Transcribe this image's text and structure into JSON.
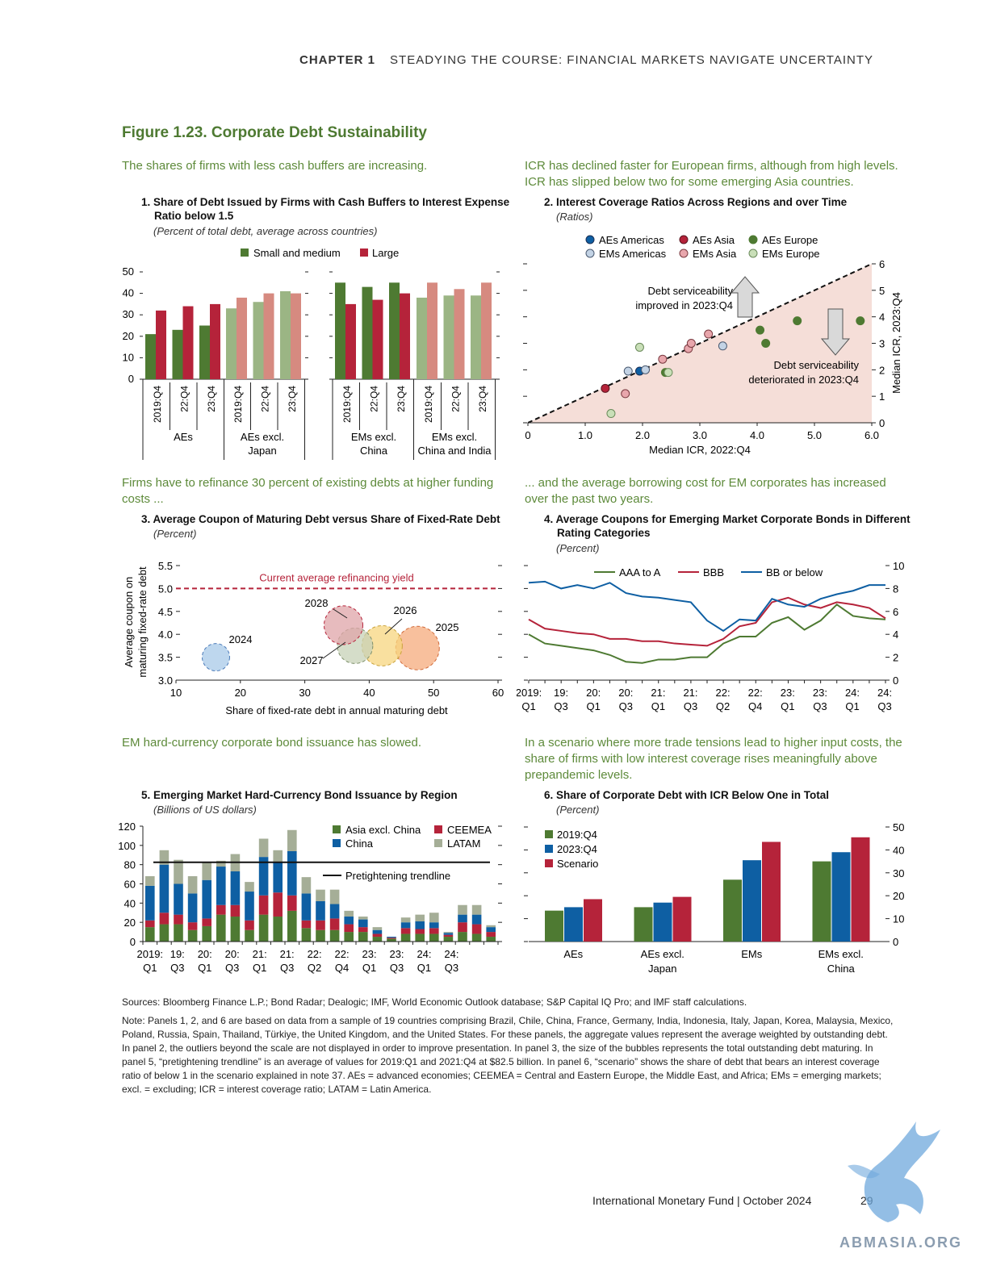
{
  "header": {
    "chapter": "CHAPTER 1",
    "title": "STEADYING THE COURSE: FINANCIAL MARKETS NAVIGATE UNCERTAINTY"
  },
  "figure_title": "Figure 1.23. Corporate Debt Sustainability",
  "leads": {
    "p1": "The shares of firms with less cash buffers are increasing.",
    "p2": "ICR has declined faster for European firms, although from high levels. ICR has slipped below two for some emerging Asia countries.",
    "p3": "Firms have to refinance 30 percent of existing debts at higher funding costs ...",
    "p4": "... and the average borrowing cost for EM corporates has increased over the past two years.",
    "p5": "EM hard-currency corporate bond issuance has slowed.",
    "p6": "In a scenario where more trade tensions lead to higher input costs, the share of firms with low interest coverage rises meaningfully above prepandemic levels."
  },
  "panels": {
    "p1": {
      "title1": "1. Share of Debt Issued by Firms with Cash Buffers to Interest Expense",
      "title2": "Ratio below 1.5",
      "unit": "(Percent of total debt, average across countries)"
    },
    "p2": {
      "title": "2. Interest Coverage Ratios Across Regions and over Time",
      "unit": "(Ratios)"
    },
    "p3": {
      "title": "3. Average Coupon of Maturing Debt versus Share of Fixed-Rate Debt",
      "unit": "(Percent)"
    },
    "p4": {
      "title1": "4. Average Coupons for Emerging Market Corporate Bonds in Different",
      "title2": "Rating Categories",
      "unit": "(Percent)"
    },
    "p5": {
      "title": "5. Emerging Market Hard-Currency Bond Issuance by Region",
      "unit": "(Billions of US dollars)"
    },
    "p6": {
      "title": "6. Share of Corporate Debt with ICR Below One in Total",
      "unit": "(Percent)"
    }
  },
  "colors": {
    "green": "#4e7a32",
    "red": "#b5233a",
    "lightgreen": "#9bb584",
    "lightred": "#d68a80",
    "blue": "#0e5fa3",
    "lightblue": "#c3d3e5",
    "pink": "#e8a6ac",
    "palegreen": "#c9dfb8",
    "gray": "#a5ae97"
  },
  "chart_data": [
    {
      "type": "bar",
      "id": "p1",
      "series": [
        {
          "name": "Small and medium",
          "values": [
            21,
            23,
            25,
            33,
            36,
            41,
            45,
            43,
            45,
            38,
            39,
            39
          ]
        },
        {
          "name": "Large",
          "values": [
            32,
            34,
            35,
            38,
            40,
            40,
            35,
            37,
            40,
            45,
            42,
            45
          ]
        }
      ],
      "categories": [
        "2019:Q4",
        "22:Q4",
        "23:Q4",
        "2019:Q4",
        "22:Q4",
        "23:Q4",
        "2019:Q4",
        "22:Q4",
        "23:Q4",
        "2019:Q4",
        "22:Q4",
        "23:Q4"
      ],
      "groups": [
        "AEs",
        "AEs excl. Japan",
        "EMs excl. China",
        "EMs excl. China and India"
      ],
      "ylim": [
        0,
        50
      ],
      "yticks": [
        "0",
        "10",
        "20",
        "30",
        "40",
        "50"
      ]
    },
    {
      "type": "scatter",
      "id": "p2",
      "xlabel": "Median ICR, 2022:Q4",
      "ylabel": "Median ICR, 2023:Q4",
      "xlim": [
        0,
        6
      ],
      "ylim": [
        0,
        6
      ],
      "xticks": [
        "0",
        "1.0",
        "2.0",
        "3.0",
        "4.0",
        "5.0",
        "6.0"
      ],
      "yticks": [
        "0",
        "1",
        "2",
        "3",
        "4",
        "5",
        "6"
      ],
      "legend": [
        "AEs Americas",
        "EMs Americas",
        "AEs Asia",
        "EMs Asia",
        "AEs Europe",
        "EMs Europe"
      ],
      "annot_up": [
        "Debt serviceability",
        "improved in 2023:Q4"
      ],
      "annot_down": [
        "Debt serviceability",
        "deteriorated in 2023:Q4"
      ],
      "points": [
        {
          "g": "AEs Americas",
          "x": 1.95,
          "y": 1.95
        },
        {
          "g": "EMs Americas",
          "x": 1.75,
          "y": 1.95
        },
        {
          "g": "EMs Americas",
          "x": 2.05,
          "y": 2.0
        },
        {
          "g": "EMs Americas",
          "x": 3.4,
          "y": 2.9
        },
        {
          "g": "AEs Asia",
          "x": 1.35,
          "y": 1.3
        },
        {
          "g": "EMs Asia",
          "x": 1.7,
          "y": 1.1
        },
        {
          "g": "EMs Asia",
          "x": 2.35,
          "y": 2.4
        },
        {
          "g": "EMs Asia",
          "x": 2.8,
          "y": 2.8
        },
        {
          "g": "EMs Asia",
          "x": 2.85,
          "y": 3.0
        },
        {
          "g": "EMs Asia",
          "x": 3.15,
          "y": 3.35
        },
        {
          "g": "AEs Europe",
          "x": 2.4,
          "y": 1.9
        },
        {
          "g": "AEs Europe",
          "x": 4.05,
          "y": 3.5
        },
        {
          "g": "AEs Europe",
          "x": 4.15,
          "y": 3.0
        },
        {
          "g": "AEs Europe",
          "x": 4.7,
          "y": 3.85
        },
        {
          "g": "AEs Europe",
          "x": 5.8,
          "y": 3.85
        },
        {
          "g": "EMs Europe",
          "x": 1.45,
          "y": 0.35
        },
        {
          "g": "EMs Europe",
          "x": 1.95,
          "y": 2.85
        },
        {
          "g": "EMs Europe",
          "x": 2.45,
          "y": 1.9
        }
      ]
    },
    {
      "type": "bubble",
      "id": "p3",
      "xlabel": "Share of fixed-rate debt in annual maturing debt",
      "ylabel": [
        "Average coupon on",
        "maturing fixed-rate debt"
      ],
      "xlim": [
        10,
        60
      ],
      "ylim": [
        3.0,
        5.5
      ],
      "xticks": [
        "10",
        "20",
        "30",
        "40",
        "50",
        "60"
      ],
      "yticks": [
        "3.0",
        "3.5",
        "4.0",
        "4.5",
        "5.0",
        "5.5"
      ],
      "refline_label": "Current average refinancing yield",
      "refline": 5.0,
      "bubbles": [
        {
          "label": "2024",
          "x": 16.2,
          "y": 3.5,
          "r": 17
        },
        {
          "label": "2025",
          "x": 47.5,
          "y": 3.7,
          "r": 27
        },
        {
          "label": "2026",
          "x": 42.0,
          "y": 3.75,
          "r": 25
        },
        {
          "label": "2027",
          "x": 37.8,
          "y": 3.75,
          "r": 22
        },
        {
          "label": "2028",
          "x": 36.0,
          "y": 4.2,
          "r": 24
        }
      ]
    },
    {
      "type": "line",
      "id": "p4",
      "ylim": [
        0,
        10
      ],
      "yticks": [
        "0",
        "2",
        "4",
        "6",
        "8",
        "10"
      ],
      "xticks": [
        [
          "2019:",
          "Q1"
        ],
        [
          "19:",
          "Q3"
        ],
        [
          "20:",
          "Q1"
        ],
        [
          "20:",
          "Q3"
        ],
        [
          "21:",
          "Q1"
        ],
        [
          "21:",
          "Q3"
        ],
        [
          "22:",
          "Q2"
        ],
        [
          "22:",
          "Q4"
        ],
        [
          "23:",
          "Q1"
        ],
        [
          "23:",
          "Q3"
        ],
        [
          "24:",
          "Q1"
        ],
        [
          "24:",
          "Q3"
        ]
      ],
      "series": [
        {
          "name": "AAA to A",
          "values": [
            4.0,
            3.2,
            3.0,
            2.8,
            2.6,
            2.2,
            1.6,
            1.5,
            1.8,
            1.8,
            2.0,
            2.0,
            3.2,
            3.8,
            3.8,
            5.0,
            5.5,
            4.4,
            5.2,
            6.6,
            5.6,
            5.4,
            5.3
          ]
        },
        {
          "name": "BBB",
          "values": [
            5.3,
            4.5,
            4.3,
            4.1,
            4.0,
            3.6,
            3.6,
            3.4,
            3.4,
            3.2,
            3.1,
            3.0,
            3.6,
            4.7,
            5.0,
            6.8,
            7.2,
            6.6,
            6.3,
            6.8,
            6.6,
            6.3,
            5.4
          ]
        },
        {
          "name": "BB or below",
          "values": [
            8.5,
            8.6,
            8.0,
            8.3,
            8.0,
            8.5,
            7.6,
            7.3,
            7.2,
            7.0,
            6.8,
            5.2,
            4.3,
            5.3,
            5.2,
            7.1,
            6.6,
            6.4,
            7.1,
            7.5,
            7.8,
            8.3,
            8.3
          ]
        }
      ]
    },
    {
      "type": "stacked_bar",
      "id": "p5",
      "ylim": [
        0,
        120
      ],
      "yticks": [
        "0",
        "20",
        "40",
        "60",
        "80",
        "100",
        "120"
      ],
      "xticks": [
        [
          "2019:",
          "Q1"
        ],
        [
          "19:",
          "Q3"
        ],
        [
          "20:",
          "Q1"
        ],
        [
          "20:",
          "Q3"
        ],
        [
          "21:",
          "Q1"
        ],
        [
          "21:",
          "Q3"
        ],
        [
          "22:",
          "Q2"
        ],
        [
          "22:",
          "Q4"
        ],
        [
          "23:",
          "Q1"
        ],
        [
          "23:",
          "Q3"
        ],
        [
          "24:",
          "Q1"
        ],
        [
          "24:",
          "Q3"
        ]
      ],
      "trendline": 82.5,
      "trendline_label": "Pretightening trendline",
      "series": [
        {
          "name": "Asia excl. China",
          "values": [
            15,
            18,
            18,
            12,
            16,
            28,
            26,
            12,
            28,
            26,
            32,
            14,
            12,
            12,
            10,
            10,
            5,
            3,
            8,
            8,
            8,
            5,
            10,
            8,
            5
          ]
        },
        {
          "name": "CEEMEA",
          "values": [
            7,
            12,
            10,
            8,
            8,
            10,
            12,
            10,
            20,
            25,
            16,
            8,
            10,
            12,
            8,
            5,
            3,
            1,
            6,
            5,
            6,
            2,
            10,
            10,
            5
          ]
        },
        {
          "name": "China",
          "values": [
            36,
            50,
            32,
            30,
            40,
            40,
            35,
            30,
            40,
            32,
            46,
            28,
            20,
            15,
            8,
            8,
            4,
            1,
            6,
            8,
            6,
            2,
            8,
            10,
            5
          ]
        },
        {
          "name": "LATAM",
          "values": [
            10,
            15,
            25,
            18,
            19,
            6,
            18,
            10,
            19,
            12,
            22,
            17,
            12,
            15,
            6,
            3,
            3,
            0,
            5,
            7,
            10,
            1,
            10,
            10,
            2
          ]
        }
      ]
    },
    {
      "type": "bar",
      "id": "p6",
      "categories": [
        [
          "AEs"
        ],
        [
          "AEs excl.",
          "Japan"
        ],
        [
          "EMs"
        ],
        [
          "EMs excl.",
          "China"
        ]
      ],
      "ylim": [
        0,
        50
      ],
      "yticks": [
        "0",
        "10",
        "20",
        "30",
        "40",
        "50"
      ],
      "series": [
        {
          "name": "2019:Q4",
          "values": [
            13.5,
            15,
            27,
            35
          ]
        },
        {
          "name": "2023:Q4",
          "values": [
            15,
            17,
            35.5,
            39
          ]
        },
        {
          "name": "Scenario",
          "values": [
            18.5,
            19.5,
            43.5,
            45.5
          ]
        }
      ]
    }
  ],
  "sources": "Sources: Bloomberg Finance L.P.; Bond Radar; Dealogic; IMF, World Economic Outlook database; S&P Capital IQ Pro; and IMF staff calculations.",
  "note": "Note: Panels 1, 2, and 6 are based on data from a sample of 19 countries comprising Brazil, Chile, China, France, Germany, India, Indonesia, Italy, Japan, Korea, Malaysia, Mexico, Poland, Russia, Spain, Thailand, Türkiye, the United Kingdom, and the United States. For these panels, the aggregate values represent the average weighted by outstanding debt. In panel 2, the outliers beyond the scale are not displayed in order to improve presentation. In panel 3, the size of the bubbles represents the total outstanding debt maturing. In panel 5, “pretightening trendline” is an average of values for 2019:Q1 and 2021:Q4 at $82.5 billion. In panel 6, “scenario” shows the share of debt that bears an interest coverage ratio of below 1 in the scenario explained in note 37. AEs = advanced economies; CEEMEA = Central and Eastern Europe, the Middle East, and Africa; EMs = emerging markets; excl. = excluding; ICR = interest coverage ratio; LATAM = Latin America.",
  "footer": {
    "publisher": "International Monetary Fund | October 2024",
    "page": "29",
    "watermark": "ABMASIA.ORG"
  }
}
